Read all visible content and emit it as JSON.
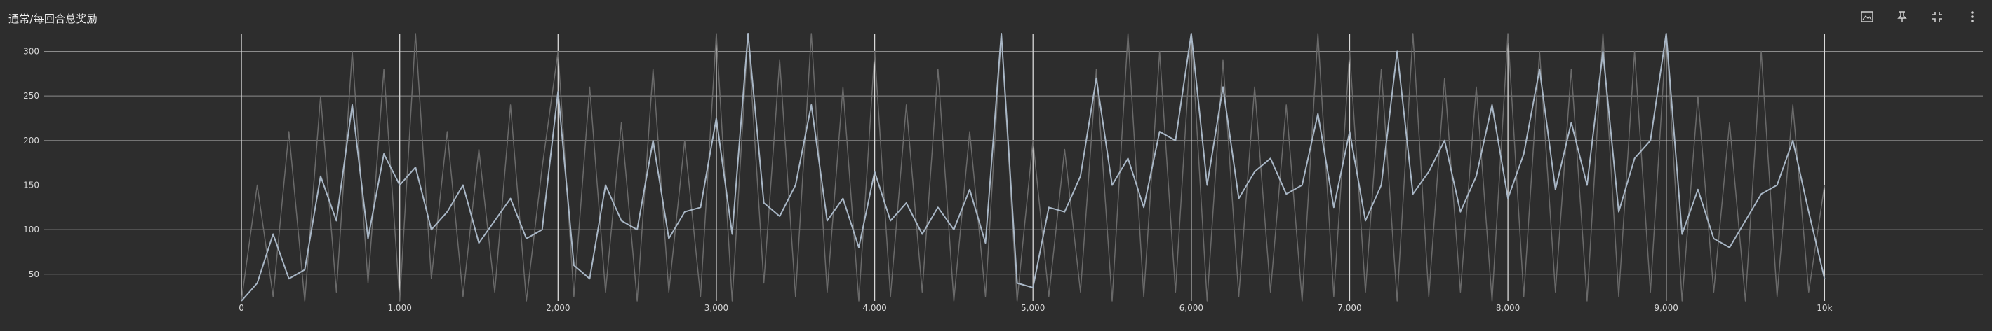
{
  "card": {
    "title": "通常/每回合总奖励"
  },
  "toolbar": {
    "icons": [
      "image-icon",
      "pin-icon",
      "fit-domain-icon",
      "more-vert-icon"
    ]
  },
  "colors": {
    "background": "#2d2d2d",
    "grid": "#8c8c8c",
    "smoothed_line": "#a9b7c6",
    "raw_line": "#6a6a6a"
  },
  "chart_data": {
    "type": "line",
    "title": "",
    "xlabel": "",
    "ylabel": "",
    "xlim": [
      -1250,
      11000
    ],
    "ylim": [
      20,
      320
    ],
    "x_ticks": [
      0,
      1000,
      2000,
      3000,
      4000,
      5000,
      6000,
      7000,
      8000,
      9000,
      10000
    ],
    "x_tick_labels": [
      "0",
      "1,000",
      "2,000",
      "3,000",
      "4,000",
      "5,000",
      "6,000",
      "7,000",
      "8,000",
      "9,000",
      "10k"
    ],
    "y_ticks": [
      50,
      100,
      150,
      200,
      250,
      300
    ],
    "y_tick_labels": [
      "50",
      "100",
      "150",
      "200",
      "250",
      "300"
    ],
    "grid": true,
    "legend": "none",
    "series": [
      {
        "x": [
          0,
          100,
          200,
          300,
          400,
          500,
          600,
          700,
          800,
          900,
          1000,
          1100,
          1200,
          1300,
          1400,
          1500,
          1600,
          1700,
          1800,
          1900,
          2000,
          2100,
          2200,
          2300,
          2400,
          2500,
          2600,
          2700,
          2800,
          2900,
          3000,
          3100,
          3200,
          3300,
          3400,
          3500,
          3600,
          3700,
          3800,
          3900,
          4000,
          4100,
          4200,
          4300,
          4400,
          4500,
          4600,
          4700,
          4800,
          4900,
          5000,
          5100,
          5200,
          5300,
          5400,
          5500,
          5600,
          5700,
          5800,
          5900,
          6000,
          6100,
          6200,
          6300,
          6400,
          6500,
          6600,
          6700,
          6800,
          6900,
          7000,
          7100,
          7200,
          7300,
          7400,
          7500,
          7600,
          7700,
          7800,
          7900,
          8000,
          8100,
          8200,
          8300,
          8400,
          8500,
          8600,
          8700,
          8800,
          8900,
          9000,
          9100,
          9200,
          9300,
          9400,
          9500,
          9600,
          9700,
          9800,
          9900,
          10000
        ],
        "y": [
          20,
          40,
          95,
          45,
          55,
          160,
          110,
          240,
          90,
          185,
          150,
          170,
          100,
          120,
          150,
          85,
          110,
          135,
          90,
          100,
          255,
          60,
          45,
          150,
          110,
          100,
          200,
          90,
          120,
          125,
          225,
          95,
          320,
          130,
          115,
          150,
          240,
          110,
          135,
          80,
          165,
          110,
          130,
          95,
          125,
          100,
          145,
          85,
          320,
          40,
          35,
          125,
          120,
          160,
          270,
          150,
          180,
          125,
          210,
          200,
          320,
          150,
          260,
          135,
          165,
          180,
          140,
          150,
          230,
          125,
          210,
          110,
          150,
          300,
          140,
          165,
          200,
          120,
          160,
          240,
          135,
          185,
          280,
          145,
          220,
          150,
          300,
          120,
          180,
          200,
          320,
          95,
          145,
          90,
          80,
          110,
          140,
          150,
          200,
          120,
          45
        ]
      },
      {
        "x": [
          0,
          100,
          200,
          300,
          400,
          500,
          600,
          700,
          800,
          900,
          1000,
          1100,
          1200,
          1300,
          1400,
          1500,
          1600,
          1700,
          1800,
          1900,
          2000,
          2100,
          2200,
          2300,
          2400,
          2500,
          2600,
          2700,
          2800,
          2900,
          3000,
          3100,
          3200,
          3300,
          3400,
          3500,
          3600,
          3700,
          3800,
          3900,
          4000,
          4100,
          4200,
          4300,
          4400,
          4500,
          4600,
          4700,
          4800,
          4900,
          5000,
          5100,
          5200,
          5300,
          5400,
          5500,
          5600,
          5700,
          5800,
          5900,
          6000,
          6100,
          6200,
          6300,
          6400,
          6500,
          6600,
          6700,
          6800,
          6900,
          7000,
          7100,
          7200,
          7300,
          7400,
          7500,
          7600,
          7700,
          7800,
          7900,
          8000,
          8100,
          8200,
          8300,
          8400,
          8500,
          8600,
          8700,
          8800,
          8900,
          9000,
          9100,
          9200,
          9300,
          9400,
          9500,
          9600,
          9700,
          9800,
          9900,
          10000
        ],
        "y": [
          20,
          150,
          25,
          210,
          20,
          250,
          30,
          300,
          40,
          280,
          20,
          320,
          45,
          210,
          25,
          190,
          30,
          240,
          20,
          170,
          300,
          25,
          260,
          30,
          220,
          20,
          280,
          30,
          200,
          25,
          320,
          20,
          320,
          40,
          290,
          25,
          320,
          30,
          260,
          20,
          300,
          25,
          240,
          30,
          280,
          20,
          210,
          25,
          320,
          20,
          200,
          25,
          190,
          30,
          280,
          20,
          320,
          25,
          300,
          30,
          320,
          20,
          290,
          25,
          260,
          30,
          240,
          20,
          320,
          25,
          300,
          30,
          280,
          20,
          320,
          25,
          270,
          30,
          260,
          20,
          320,
          25,
          300,
          30,
          280,
          20,
          320,
          25,
          300,
          30,
          320,
          20,
          250,
          30,
          220,
          20,
          300,
          25,
          240,
          30,
          150
        ]
      }
    ]
  }
}
